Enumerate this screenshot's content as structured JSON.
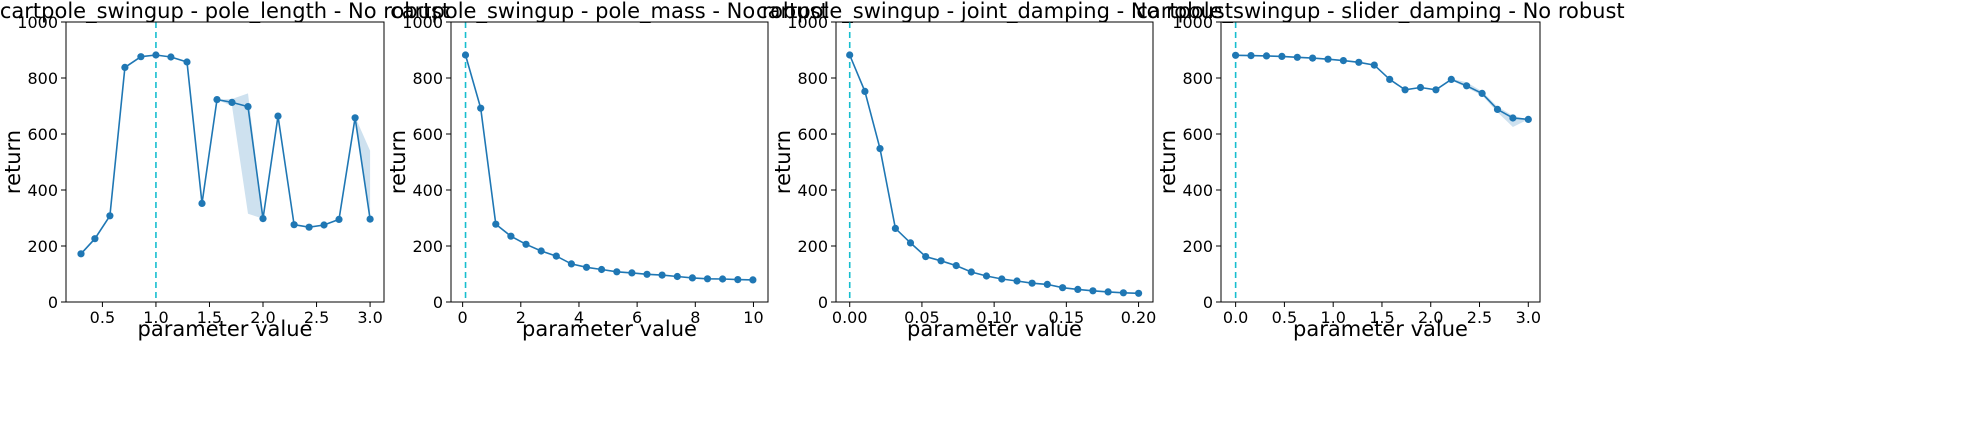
{
  "chart_data": [
    {
      "type": "line",
      "title": "cartpole_swingup - pole_length - No robust",
      "xlabel": "parameter value",
      "ylabel": "return",
      "xlim": [
        0.16,
        3.13
      ],
      "ylim": [
        0,
        1000
      ],
      "xticks": [
        0.5,
        1.0,
        1.5,
        2.0,
        2.5,
        3.0
      ],
      "xtick_labels": [
        "0.5",
        "1.0",
        "1.5",
        "2.0",
        "2.5",
        "3.0"
      ],
      "yticks": [
        0,
        200,
        400,
        600,
        800,
        1000
      ],
      "ytick_labels": [
        "0",
        "200",
        "400",
        "600",
        "800",
        "1000"
      ],
      "reference_x": 1.0,
      "x": [
        0.3,
        0.43,
        0.57,
        0.71,
        0.86,
        1.0,
        1.14,
        1.29,
        1.43,
        1.57,
        1.71,
        1.86,
        2.0,
        2.14,
        2.29,
        2.43,
        2.57,
        2.71,
        2.86,
        3.0
      ],
      "y": [
        172,
        226,
        308,
        838,
        876,
        882,
        875,
        857,
        352,
        723,
        713,
        698,
        298,
        664,
        276,
        267,
        275,
        295,
        658,
        296
      ],
      "y_lower": [
        172,
        226,
        308,
        838,
        876,
        882,
        875,
        857,
        352,
        723,
        700,
        315,
        298,
        664,
        276,
        267,
        275,
        295,
        655,
        296
      ],
      "y_upper": [
        172,
        226,
        308,
        838,
        876,
        882,
        875,
        857,
        352,
        723,
        725,
        745,
        298,
        664,
        276,
        267,
        275,
        295,
        662,
        540
      ]
    },
    {
      "type": "line",
      "title": "cartpole_swingup - pole_mass - No robust",
      "xlabel": "parameter value",
      "ylabel": "return",
      "xlim": [
        -0.4,
        10.5
      ],
      "ylim": [
        0,
        1000
      ],
      "xticks": [
        0,
        2,
        4,
        6,
        8,
        10
      ],
      "xtick_labels": [
        "0",
        "2",
        "4",
        "6",
        "8",
        "10"
      ],
      "yticks": [
        0,
        200,
        400,
        600,
        800,
        1000
      ],
      "ytick_labels": [
        "0",
        "200",
        "400",
        "600",
        "800",
        "1000"
      ],
      "reference_x": 0.1,
      "x": [
        0.1,
        0.62,
        1.14,
        1.66,
        2.18,
        2.7,
        3.22,
        3.74,
        4.26,
        4.78,
        5.3,
        5.82,
        6.34,
        6.86,
        7.38,
        7.9,
        8.42,
        8.94,
        9.46,
        9.98
      ],
      "y": [
        882,
        692,
        278,
        235,
        206,
        182,
        164,
        136,
        124,
        116,
        108,
        104,
        99,
        96,
        91,
        86,
        83,
        82,
        80,
        79
      ],
      "y_lower": [
        882,
        692,
        278,
        235,
        206,
        182,
        164,
        136,
        124,
        116,
        108,
        104,
        99,
        96,
        91,
        86,
        83,
        82,
        80,
        79
      ],
      "y_upper": [
        882,
        692,
        278,
        235,
        206,
        182,
        164,
        136,
        124,
        116,
        108,
        104,
        99,
        96,
        91,
        86,
        83,
        82,
        80,
        79
      ]
    },
    {
      "type": "line",
      "title": "cartpole_swingup - joint_damping - No robust",
      "xlabel": "parameter value",
      "ylabel": "return",
      "xlim": [
        -0.0095,
        0.21
      ],
      "ylim": [
        0,
        1000
      ],
      "xticks": [
        0.0,
        0.05,
        0.1,
        0.15,
        0.2
      ],
      "xtick_labels": [
        "0.00",
        "0.05",
        "0.10",
        "0.15",
        "0.20"
      ],
      "yticks": [
        0,
        200,
        400,
        600,
        800,
        1000
      ],
      "ytick_labels": [
        "0",
        "200",
        "400",
        "600",
        "800",
        "1000"
      ],
      "reference_x": 0.0,
      "x": [
        0.0,
        0.0105,
        0.021,
        0.0316,
        0.0421,
        0.0526,
        0.0632,
        0.0737,
        0.0842,
        0.0947,
        0.1053,
        0.1158,
        0.1263,
        0.1368,
        0.1474,
        0.1579,
        0.1684,
        0.1789,
        0.1895,
        0.2
      ],
      "y": [
        882,
        752,
        548,
        263,
        211,
        162,
        147,
        130,
        107,
        93,
        82,
        75,
        67,
        63,
        51,
        45,
        40,
        36,
        33,
        31
      ],
      "y_lower": [
        882,
        752,
        548,
        263,
        211,
        162,
        147,
        130,
        107,
        93,
        82,
        75,
        67,
        63,
        51,
        45,
        40,
        36,
        33,
        31
      ],
      "y_upper": [
        882,
        752,
        548,
        263,
        211,
        162,
        147,
        130,
        107,
        93,
        82,
        75,
        67,
        63,
        51,
        45,
        40,
        36,
        33,
        31
      ]
    },
    {
      "type": "line",
      "title": "cartpole_swingup - slider_damping - No robust",
      "xlabel": "parameter value",
      "ylabel": "return",
      "xlim": [
        -0.15,
        3.12
      ],
      "ylim": [
        0,
        1000
      ],
      "xticks": [
        0.0,
        0.5,
        1.0,
        1.5,
        2.0,
        2.5,
        3.0
      ],
      "xtick_labels": [
        "0.0",
        "0.5",
        "1.0",
        "1.5",
        "2.0",
        "2.5",
        "3.0"
      ],
      "yticks": [
        0,
        200,
        400,
        600,
        800,
        1000
      ],
      "ytick_labels": [
        "0",
        "200",
        "400",
        "600",
        "800",
        "1000"
      ],
      "reference_x": 0.0,
      "x": [
        0.0,
        0.158,
        0.316,
        0.474,
        0.632,
        0.789,
        0.947,
        1.105,
        1.263,
        1.421,
        1.579,
        1.737,
        1.895,
        2.053,
        2.211,
        2.368,
        2.526,
        2.684,
        2.842,
        3.0
      ],
      "y": [
        881,
        880,
        879,
        877,
        874,
        871,
        867,
        862,
        856,
        846,
        795,
        758,
        766,
        758,
        795,
        772,
        745,
        688,
        657,
        652
      ],
      "y_lower": [
        881,
        880,
        879,
        877,
        874,
        871,
        867,
        862,
        856,
        846,
        795,
        758,
        766,
        758,
        792,
        765,
        738,
        678,
        625,
        652
      ],
      "y_upper": [
        881,
        880,
        879,
        877,
        874,
        871,
        867,
        862,
        856,
        846,
        795,
        758,
        766,
        758,
        798,
        785,
        752,
        698,
        665,
        652
      ]
    }
  ]
}
